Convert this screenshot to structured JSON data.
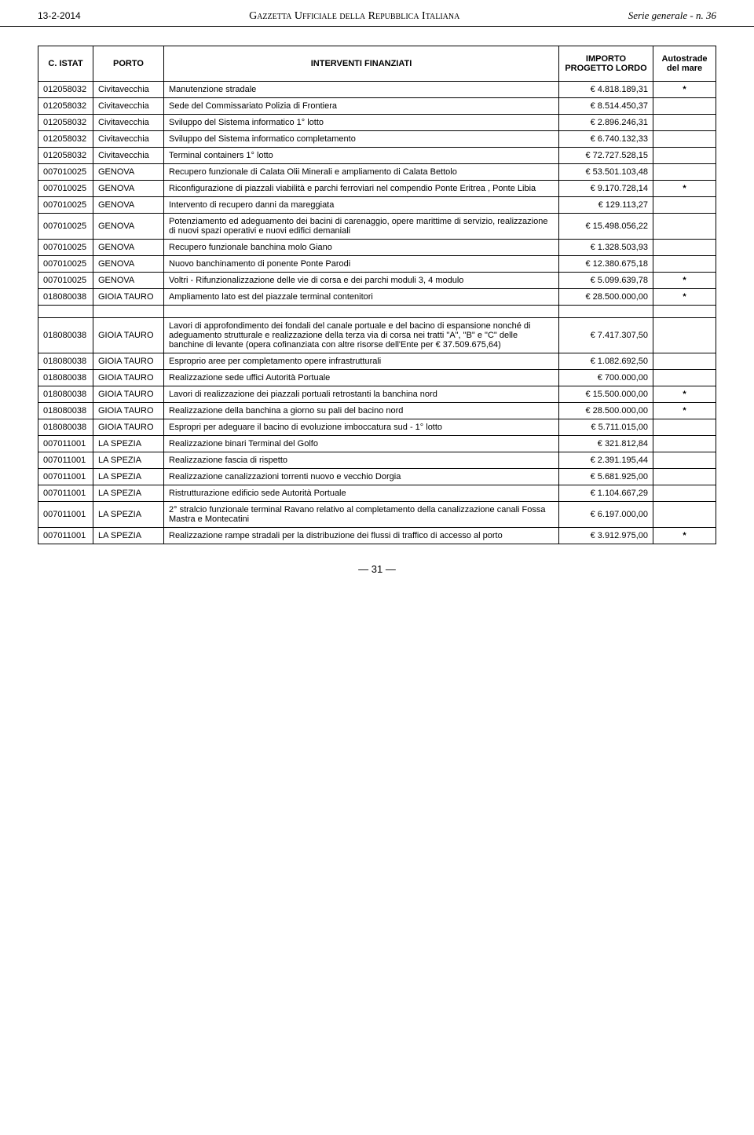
{
  "header": {
    "date": "13-2-2014",
    "title": "Gazzetta Ufficiale della Repubblica Italiana",
    "serie": "Serie generale - n. 36"
  },
  "table": {
    "columns": [
      "C. ISTAT",
      "PORTO",
      "INTERVENTI FINANZIATI",
      "IMPORTO PROGETTO LORDO",
      "Autostrade del mare"
    ],
    "rows": [
      {
        "code": "012058032",
        "porto": "Civitavecchia",
        "desc": "Manutenzione stradale",
        "amount": "€        4.818.189,31",
        "mark": "*"
      },
      {
        "code": "012058032",
        "porto": "Civitavecchia",
        "desc": "Sede del Commissariato Polizia di Frontiera",
        "amount": "€        8.514.450,37",
        "mark": ""
      },
      {
        "code": "012058032",
        "porto": "Civitavecchia",
        "desc": "Sviluppo del Sistema informatico 1° lotto",
        "amount": "€        2.896.246,31",
        "mark": ""
      },
      {
        "code": "012058032",
        "porto": "Civitavecchia",
        "desc": "Sviluppo del Sistema informatico completamento",
        "amount": "€        6.740.132,33",
        "mark": ""
      },
      {
        "code": "012058032",
        "porto": "Civitavecchia",
        "desc": "Terminal containers 1° lotto",
        "amount": "€          72.727.528,15",
        "mark": ""
      },
      {
        "code": "007010025",
        "porto": "GENOVA",
        "desc": "Recupero funzionale di Calata Olii Minerali e ampliamento di Calata Bettolo",
        "amount": "€          53.501.103,48",
        "mark": ""
      },
      {
        "code": "007010025",
        "porto": "GENOVA",
        "desc": "Riconfigurazione di piazzali viabilità e parchi ferroviari nel compendio Ponte Eritrea , Ponte Libia",
        "amount": "€        9.170.728,14",
        "mark": "*"
      },
      {
        "code": "007010025",
        "porto": "GENOVA",
        "desc": "Intervento di recupero danni da mareggiata",
        "amount": "€           129.113,27",
        "mark": ""
      },
      {
        "code": "007010025",
        "porto": "GENOVA",
        "desc": "Potenziamento ed adeguamento dei bacini di carenaggio, opere marittime di servizio, realizzazione di nuovi spazi operativi e nuovi edifici demaniali",
        "amount": "€          15.498.056,22",
        "mark": ""
      },
      {
        "code": "007010025",
        "porto": "GENOVA",
        "desc": "Recupero funzionale banchina molo Giano",
        "amount": "€        1.328.503,93",
        "mark": ""
      },
      {
        "code": "007010025",
        "porto": "GENOVA",
        "desc": "Nuovo banchinamento di ponente Ponte Parodi",
        "amount": "€          12.380.675,18",
        "mark": ""
      },
      {
        "code": "007010025",
        "porto": "GENOVA",
        "desc": "Voltri - Rifunzionalizzazione delle vie di corsa e dei parchi moduli 3, 4 modulo",
        "amount": "€        5.099.639,78",
        "mark": "*"
      },
      {
        "code": "018080038",
        "porto": "GIOIA TAURO",
        "desc": "Ampliamento lato est del piazzale terminal contenitori",
        "amount": "€          28.500.000,00",
        "mark": "*"
      },
      {
        "spacer": true
      },
      {
        "code": "018080038",
        "porto": "GIOIA TAURO",
        "desc": "Lavori di approfondimento dei fondali del canale portuale e del bacino di espansione nonché di adeguamento strutturale e realizzazione della terza via di corsa nei tratti \"A\", \"B\" e \"C\" delle banchine di levante (opera cofinanziata con altre risorse dell'Ente per € 37.509.675,64)",
        "amount": "€        7.417.307,50",
        "mark": ""
      },
      {
        "code": "018080038",
        "porto": "GIOIA TAURO",
        "desc": "Esproprio aree per completamento opere infrastrutturali",
        "amount": "€        1.082.692,50",
        "mark": ""
      },
      {
        "code": "018080038",
        "porto": "GIOIA TAURO",
        "desc": "Realizzazione sede uffici Autorità Portuale",
        "amount": "€           700.000,00",
        "mark": ""
      },
      {
        "code": "018080038",
        "porto": "GIOIA TAURO",
        "desc": "Lavori di realizzazione dei piazzali portuali retrostanti la banchina nord",
        "amount": "€          15.500.000,00",
        "mark": "*"
      },
      {
        "code": "018080038",
        "porto": "GIOIA TAURO",
        "desc": "Realizzazione della banchina a giorno su pali del bacino nord",
        "amount": "€          28.500.000,00",
        "mark": "*"
      },
      {
        "code": "018080038",
        "porto": "GIOIA TAURO",
        "desc": "Espropri per adeguare il bacino di evoluzione imboccatura sud - 1° lotto",
        "amount": "€        5.711.015,00",
        "mark": ""
      },
      {
        "code": "007011001",
        "porto": "LA SPEZIA",
        "desc": "Realizzazione binari Terminal del Golfo",
        "amount": "€           321.812,84",
        "mark": ""
      },
      {
        "code": "007011001",
        "porto": "LA SPEZIA",
        "desc": "Realizzazione fascia di rispetto",
        "amount": "€        2.391.195,44",
        "mark": ""
      },
      {
        "code": "007011001",
        "porto": "LA SPEZIA",
        "desc": "Realizzazione canalizzazioni torrenti nuovo e vecchio Dorgia",
        "amount": "€        5.681.925,00",
        "mark": ""
      },
      {
        "code": "007011001",
        "porto": "LA SPEZIA",
        "desc": "Ristrutturazione edificio sede Autorità Portuale",
        "amount": "€        1.104.667,29",
        "mark": ""
      },
      {
        "code": "007011001",
        "porto": "LA SPEZIA",
        "desc": "2° stralcio funzionale terminal Ravano relativo al completamento della canalizzazione canali Fossa Mastra e Montecatini",
        "amount": "€        6.197.000,00",
        "mark": ""
      },
      {
        "code": "007011001",
        "porto": "LA SPEZIA",
        "desc": "Realizzazione rampe stradali per la distribuzione dei flussi di traffico di accesso al porto",
        "amount": "€        3.912.975,00",
        "mark": "*"
      }
    ]
  },
  "page_number": "— 31 —"
}
